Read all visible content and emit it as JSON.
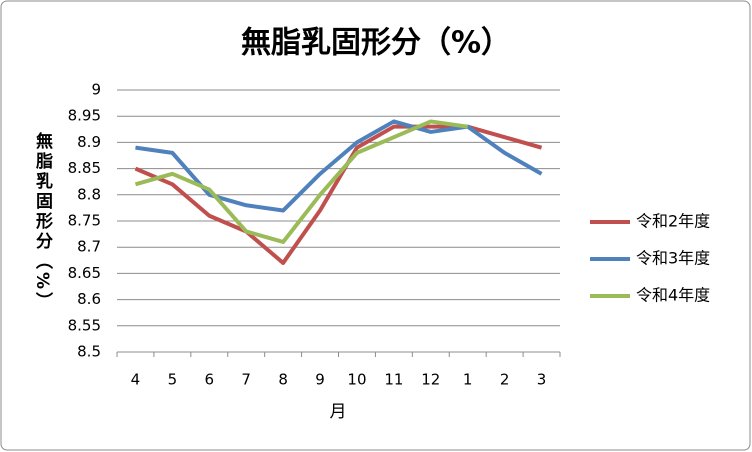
{
  "chart_data": {
    "type": "line",
    "title": "無脂乳固形分（%）",
    "ylabel": "無脂乳固形分（%）",
    "xlabel": "月",
    "categories": [
      "4",
      "5",
      "6",
      "7",
      "8",
      "9",
      "10",
      "11",
      "12",
      "1",
      "2",
      "3"
    ],
    "series": [
      {
        "name": "令和2年度",
        "color": "#c0504d",
        "values": [
          8.85,
          8.82,
          8.76,
          8.73,
          8.67,
          8.77,
          8.89,
          8.93,
          8.93,
          8.93,
          8.91,
          8.89
        ]
      },
      {
        "name": "令和3年度",
        "color": "#4f81bd",
        "values": [
          8.89,
          8.88,
          8.8,
          8.78,
          8.77,
          8.84,
          8.9,
          8.94,
          8.92,
          8.93,
          8.88,
          8.84
        ]
      },
      {
        "name": "令和4年度",
        "color": "#9bbb59",
        "values": [
          8.82,
          8.84,
          8.81,
          8.73,
          8.71,
          8.8,
          8.88,
          8.91,
          8.94,
          8.93,
          null,
          null
        ]
      }
    ],
    "ylim": [
      8.5,
      9
    ],
    "yticks": [
      8.5,
      8.55,
      8.6,
      8.65,
      8.7,
      8.75,
      8.8,
      8.85,
      8.9,
      8.95,
      9
    ],
    "grid": true,
    "legend": "right"
  }
}
